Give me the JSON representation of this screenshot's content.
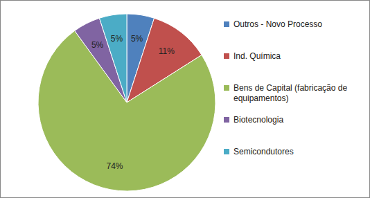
{
  "chart_data": {
    "type": "pie",
    "categories": [
      "Outros - Novo Processo",
      "Ind. Química",
      "Bens de Capital (fabricação de equipamentos)",
      "Biotecnologia",
      "Semicondutores"
    ],
    "values": [
      5,
      11,
      74,
      5,
      5
    ],
    "value_labels": [
      "5%",
      "11%",
      "74%",
      "5%",
      "5%"
    ],
    "colors": [
      "#4f81bd",
      "#c0504d",
      "#9bbb59",
      "#8064a2",
      "#4bacc6"
    ],
    "data_labels": true,
    "legend": "right"
  }
}
